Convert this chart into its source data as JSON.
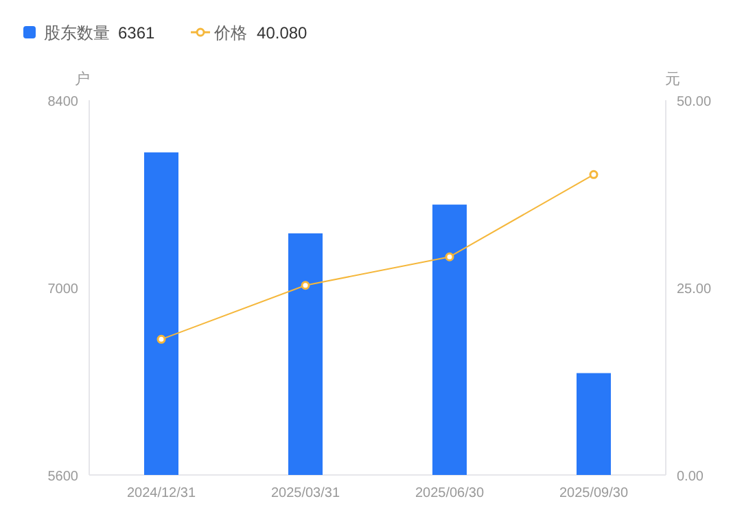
{
  "chart_data": {
    "type": "bar",
    "categories": [
      "2024/12/31",
      "2025/03/31",
      "2025/06/30",
      "2025/09/30"
    ],
    "series": [
      {
        "name": "股东数量",
        "color": "#2878f8",
        "values": [
          8010,
          7405,
          7620,
          6361
        ]
      },
      {
        "name": "价格",
        "color": "#f5b73b",
        "type": "line",
        "axis": "y2",
        "marker": "circle",
        "values": [
          18.1,
          25.3,
          29.1,
          40.08
        ]
      }
    ],
    "ylabel": "户",
    "y2label": "元",
    "ylim": [
      5600,
      8400
    ],
    "yticks": [
      5600,
      7000,
      8400
    ],
    "y2lim": [
      0,
      50
    ],
    "y2ticks": [
      {
        "value": 0,
        "label": "0.00"
      },
      {
        "value": 25,
        "label": "25.00"
      },
      {
        "value": 50,
        "label": "50.00"
      }
    ],
    "annotations": [
      "6361",
      "40.080"
    ],
    "legend": "top left",
    "grid": false
  }
}
